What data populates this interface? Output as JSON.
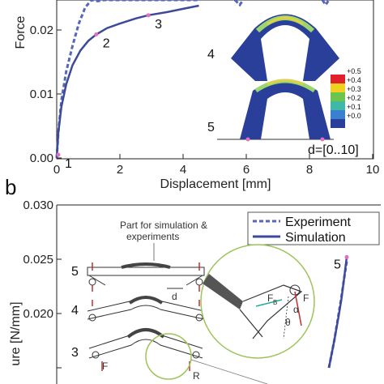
{
  "chart_data": [
    {
      "panel": "a",
      "type": "line",
      "xlabel": "Displacement [mm]",
      "ylabel": "Force",
      "xlim": [
        0,
        10
      ],
      "ylim": [
        0,
        0.025
      ],
      "xticks": [
        "0",
        "2",
        "4",
        "6",
        "8",
        "10"
      ],
      "yticks": [
        "0.00",
        "0.01",
        "0.02"
      ],
      "series": [
        {
          "style": "dashed",
          "color": "#5566bb",
          "x": [
            0,
            0.05,
            0.15,
            0.3,
            0.5,
            0.7,
            0.9,
            1.1,
            1.3,
            1.5,
            1.7,
            1.9,
            2.1,
            2.3,
            2.5,
            2.7,
            2.9,
            3.1,
            3.3,
            3.5,
            3.7,
            3.9,
            4.1,
            4.3,
            4.5
          ],
          "y": [
            0,
            0.004,
            0.009,
            0.0135,
            0.0175,
            0.021,
            0.0235,
            0.0255,
            0.0245,
            0.0265,
            0.025,
            0.027,
            0.0255,
            0.0275,
            0.026,
            0.028,
            0.0262,
            0.0285,
            0.0265,
            0.0282,
            0.027,
            0.0288,
            0.0272,
            0.029,
            0.0275
          ]
        },
        {
          "style": "solid",
          "color": "#3d4a99",
          "x": [
            0,
            0.05,
            0.15,
            0.3,
            0.5,
            0.75,
            1.0,
            1.25,
            1.6,
            2.0,
            2.5,
            2.9,
            3.5,
            4.0,
            4.5
          ],
          "y": [
            0,
            0.004,
            0.008,
            0.0115,
            0.0145,
            0.0168,
            0.0183,
            0.0193,
            0.0203,
            0.021,
            0.0218,
            0.0223,
            0.0228,
            0.0233,
            0.0238
          ]
        }
      ],
      "markers": [
        {
          "label": "1",
          "x": 0.05,
          "y": 0.0005
        },
        {
          "label": "2",
          "x": 1.25,
          "y": 0.0193
        },
        {
          "label": "3",
          "x": 2.9,
          "y": 0.0223
        }
      ],
      "inset_labels": [
        "4",
        "5"
      ],
      "colorbar": [
        "+0.5",
        "+0.4",
        "+0.3",
        "+0.2",
        "+0.1",
        "+0.0"
      ],
      "annotation": "d=[0..10]"
    },
    {
      "panel": "b",
      "type": "line",
      "ylabel": "ure [N/mm]",
      "ylim": [
        0.015,
        0.03
      ],
      "yticks": [
        "0.030",
        "0.025",
        "0.020"
      ],
      "legend": {
        "position": "top-right",
        "entries": [
          "Experiment",
          "Simulation"
        ]
      },
      "series": [
        {
          "name": "Experiment",
          "style": "dashed",
          "color": "#5566bb",
          "points": [
            [
              0.0,
              0.015
            ],
            [
              0.3,
              0.0175
            ],
            [
              0.55,
              0.02
            ],
            [
              0.7,
              0.0215
            ],
            [
              0.85,
              0.0232
            ],
            [
              1.0,
              0.0248
            ]
          ]
        },
        {
          "name": "Simulation",
          "style": "solid",
          "color": "#3d4a99",
          "points": [
            [
              0.0,
              0.015
            ],
            [
              0.3,
              0.0175
            ],
            [
              0.55,
              0.0198
            ],
            [
              0.7,
              0.0213
            ],
            [
              0.85,
              0.0232
            ],
            [
              1.0,
              0.0252
            ]
          ]
        }
      ],
      "markers": [
        {
          "label": "5",
          "y": 0.0252
        }
      ],
      "annotations": {
        "callout": "Part for simulation & experiments",
        "stages": [
          "5",
          "4",
          "3"
        ],
        "d": "d",
        "F": "F",
        "FB": "F",
        "FB_sub": "B",
        "alpha": "α",
        "theta": "θ",
        "R": "R"
      }
    }
  ]
}
